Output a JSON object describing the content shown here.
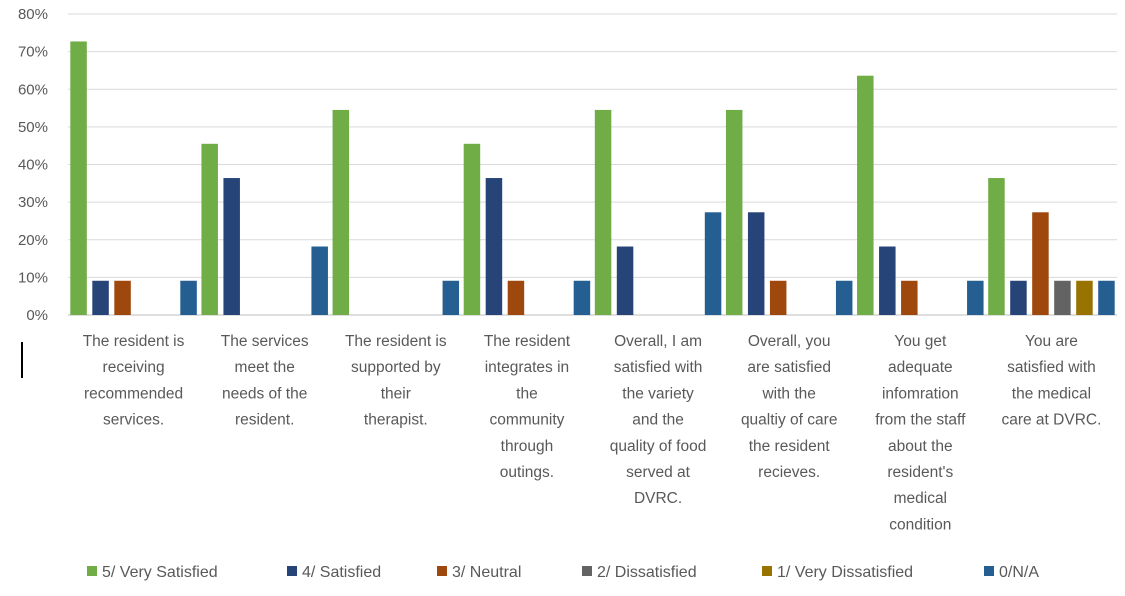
{
  "chart_data": {
    "type": "bar",
    "title": "",
    "xlabel": "",
    "ylabel": "",
    "ylim": [
      0,
      80
    ],
    "yticks": [
      "0%",
      "10%",
      "20%",
      "30%",
      "40%",
      "50%",
      "60%",
      "70%",
      "80%"
    ],
    "grid": true,
    "legend_position": "bottom",
    "categories": [
      [
        "The resident is",
        "receiving",
        "recommended",
        "services."
      ],
      [
        "The services",
        "meet the",
        "needs of the",
        "resident."
      ],
      [
        "The resident is",
        "supported by",
        "their",
        "therapist."
      ],
      [
        "The resident",
        "integrates in",
        "the",
        "community",
        "through",
        "outings."
      ],
      [
        "Overall, I am",
        "satisfied with",
        "the variety",
        "and the",
        "quality of food",
        "served at",
        "DVRC."
      ],
      [
        "Overall, you",
        "are satisfied",
        "with the",
        "qualtiy of care",
        "the resident",
        "recieves."
      ],
      [
        "You get",
        "adequate",
        "infomration",
        "from the staff",
        "about the",
        "resident's",
        "medical",
        "condition"
      ],
      [
        "You are",
        "satisfied with",
        "the medical",
        "care at DVRC."
      ]
    ],
    "series": [
      {
        "name": "5/ Very Satisfied",
        "color": "#70ad47",
        "values": [
          72.7,
          45.5,
          54.5,
          45.5,
          54.5,
          54.5,
          63.6,
          36.4
        ]
      },
      {
        "name": "4/ Satisfied",
        "color": "#264478",
        "values": [
          9.1,
          36.4,
          0,
          36.4,
          18.2,
          27.3,
          18.2,
          9.1
        ]
      },
      {
        "name": "3/ Neutral",
        "color": "#9e480e",
        "values": [
          9.1,
          0,
          0,
          9.1,
          0,
          9.1,
          9.1,
          27.3
        ]
      },
      {
        "name": "2/ Dissatisfied",
        "color": "#636363",
        "values": [
          0,
          0,
          0,
          0,
          0,
          0,
          0,
          9.1
        ]
      },
      {
        "name": "1/ Very Dissatisfied",
        "color": "#997300",
        "values": [
          0,
          0,
          0,
          0,
          0,
          0,
          0,
          9.1
        ]
      },
      {
        "name": "0/N/A",
        "color": "#255e91",
        "values": [
          9.1,
          18.2,
          9.1,
          9.1,
          27.3,
          9.1,
          9.1,
          9.1
        ]
      }
    ]
  }
}
